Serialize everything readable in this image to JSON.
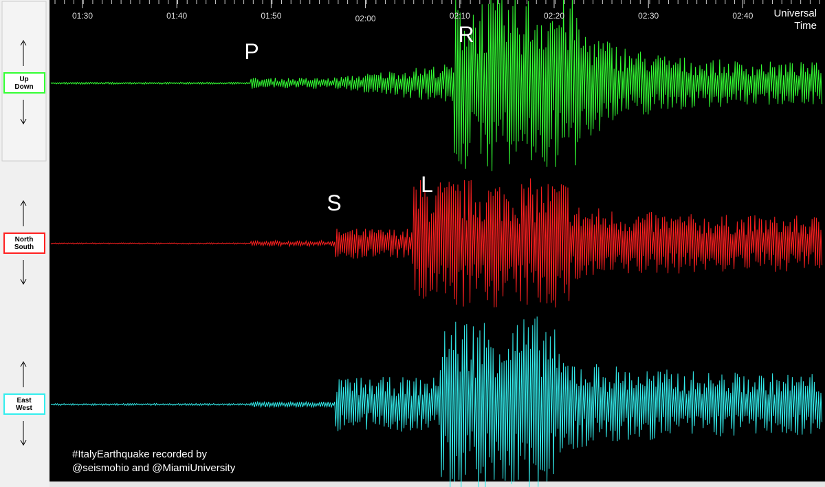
{
  "time_axis": {
    "ticks": [
      "01:30",
      "01:40",
      "01:50",
      "02:00",
      "02:10",
      "02:20",
      "02:30",
      "02:40"
    ],
    "unit_label": [
      "Universal",
      "Time"
    ]
  },
  "channels": [
    {
      "label": [
        "Up",
        "Down"
      ],
      "color": "#33ff33"
    },
    {
      "label": [
        "North",
        "South"
      ],
      "color": "#ff2020"
    },
    {
      "label": [
        "East",
        "West"
      ],
      "color": "#33eeee"
    }
  ],
  "phases": [
    "P",
    "S",
    "L",
    "R"
  ],
  "caption": [
    "#ItalyEarthquake recorded by",
    "@seismohio and @MiamiUniversity"
  ]
}
